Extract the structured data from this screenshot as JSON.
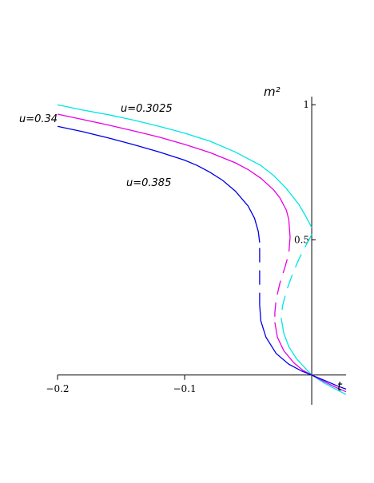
{
  "chart_data": {
    "type": "line",
    "title": "",
    "xlabel": "t",
    "ylabel": "m²",
    "xlim": [
      -0.2,
      0.027
    ],
    "ylim": [
      -0.11,
      1.03
    ],
    "x_ticks": [
      {
        "value": -0.2,
        "label": "−0.2"
      },
      {
        "value": -0.1,
        "label": "−0.1"
      }
    ],
    "y_ticks": [
      {
        "value": 0.5,
        "label": "0.5"
      },
      {
        "value": 1,
        "label": "1"
      }
    ],
    "grid": false,
    "series": [
      {
        "name": "u=0.3025",
        "color": "#00e5e5",
        "solid_upper": [
          [
            -0.2,
            1.0
          ],
          [
            -0.18,
            0.98
          ],
          [
            -0.16,
            0.963
          ],
          [
            -0.14,
            0.943
          ],
          [
            -0.12,
            0.92
          ],
          [
            -0.1,
            0.895
          ],
          [
            -0.08,
            0.865
          ],
          [
            -0.06,
            0.825
          ],
          [
            -0.04,
            0.775
          ],
          [
            -0.03,
            0.738
          ],
          [
            -0.02,
            0.69
          ],
          [
            -0.01,
            0.63
          ],
          [
            -0.005,
            0.59
          ],
          [
            0.0,
            0.545
          ]
        ],
        "dashed": [
          [
            0.0,
            0.52
          ],
          [
            -0.005,
            0.475
          ],
          [
            -0.01,
            0.43
          ],
          [
            -0.015,
            0.375
          ],
          [
            -0.02,
            0.31
          ],
          [
            -0.023,
            0.255
          ],
          [
            -0.024,
            0.21
          ]
        ],
        "solid_lower": [
          [
            -0.024,
            0.21
          ],
          [
            -0.022,
            0.155
          ],
          [
            -0.018,
            0.105
          ],
          [
            -0.012,
            0.06
          ],
          [
            -0.006,
            0.03
          ],
          [
            0.0,
            0.0
          ],
          [
            0.01,
            -0.03
          ],
          [
            0.02,
            -0.055
          ],
          [
            0.027,
            -0.072
          ]
        ]
      },
      {
        "name": "u=0.34",
        "color": "#e600e6",
        "solid_upper": [
          [
            -0.2,
            0.965
          ],
          [
            -0.18,
            0.945
          ],
          [
            -0.16,
            0.925
          ],
          [
            -0.14,
            0.903
          ],
          [
            -0.12,
            0.88
          ],
          [
            -0.1,
            0.853
          ],
          [
            -0.08,
            0.823
          ],
          [
            -0.06,
            0.785
          ],
          [
            -0.05,
            0.76
          ],
          [
            -0.04,
            0.728
          ],
          [
            -0.03,
            0.685
          ],
          [
            -0.025,
            0.655
          ],
          [
            -0.02,
            0.61
          ],
          [
            -0.018,
            0.575
          ],
          [
            -0.017,
            0.51
          ]
        ],
        "dashed": [
          [
            -0.017,
            0.51
          ],
          [
            -0.018,
            0.45
          ],
          [
            -0.021,
            0.4
          ],
          [
            -0.025,
            0.34
          ],
          [
            -0.028,
            0.28
          ],
          [
            -0.029,
            0.23
          ],
          [
            -0.029,
            0.195
          ]
        ],
        "solid_lower": [
          [
            -0.029,
            0.195
          ],
          [
            -0.027,
            0.14
          ],
          [
            -0.022,
            0.09
          ],
          [
            -0.014,
            0.045
          ],
          [
            -0.007,
            0.018
          ],
          [
            0.0,
            0.0
          ],
          [
            0.01,
            -0.025
          ],
          [
            0.02,
            -0.048
          ],
          [
            0.027,
            -0.062
          ]
        ]
      },
      {
        "name": "u=0.385",
        "color": "#0000e6",
        "solid_upper": [
          [
            -0.2,
            0.92
          ],
          [
            -0.18,
            0.9
          ],
          [
            -0.16,
            0.877
          ],
          [
            -0.14,
            0.852
          ],
          [
            -0.12,
            0.825
          ],
          [
            -0.1,
            0.795
          ],
          [
            -0.09,
            0.775
          ],
          [
            -0.08,
            0.75
          ],
          [
            -0.07,
            0.72
          ],
          [
            -0.06,
            0.68
          ],
          [
            -0.05,
            0.625
          ],
          [
            -0.045,
            0.58
          ],
          [
            -0.042,
            0.53
          ],
          [
            -0.041,
            0.49
          ]
        ],
        "dashed": [
          [
            -0.041,
            0.47
          ],
          [
            -0.041,
            0.42
          ],
          [
            -0.041,
            0.37
          ],
          [
            -0.041,
            0.32
          ],
          [
            -0.041,
            0.26
          ]
        ],
        "solid_lower": [
          [
            -0.041,
            0.26
          ],
          [
            -0.04,
            0.2
          ],
          [
            -0.036,
            0.14
          ],
          [
            -0.028,
            0.08
          ],
          [
            -0.018,
            0.04
          ],
          [
            -0.008,
            0.015
          ],
          [
            0.0,
            0.0
          ],
          [
            0.01,
            -0.02
          ],
          [
            0.02,
            -0.04
          ],
          [
            0.027,
            -0.052
          ]
        ]
      }
    ],
    "annotations": [
      {
        "text": "u=0.3025",
        "series": 0
      },
      {
        "text": "u=0.34",
        "series": 1
      },
      {
        "text": "u=0.385",
        "series": 2
      }
    ]
  }
}
